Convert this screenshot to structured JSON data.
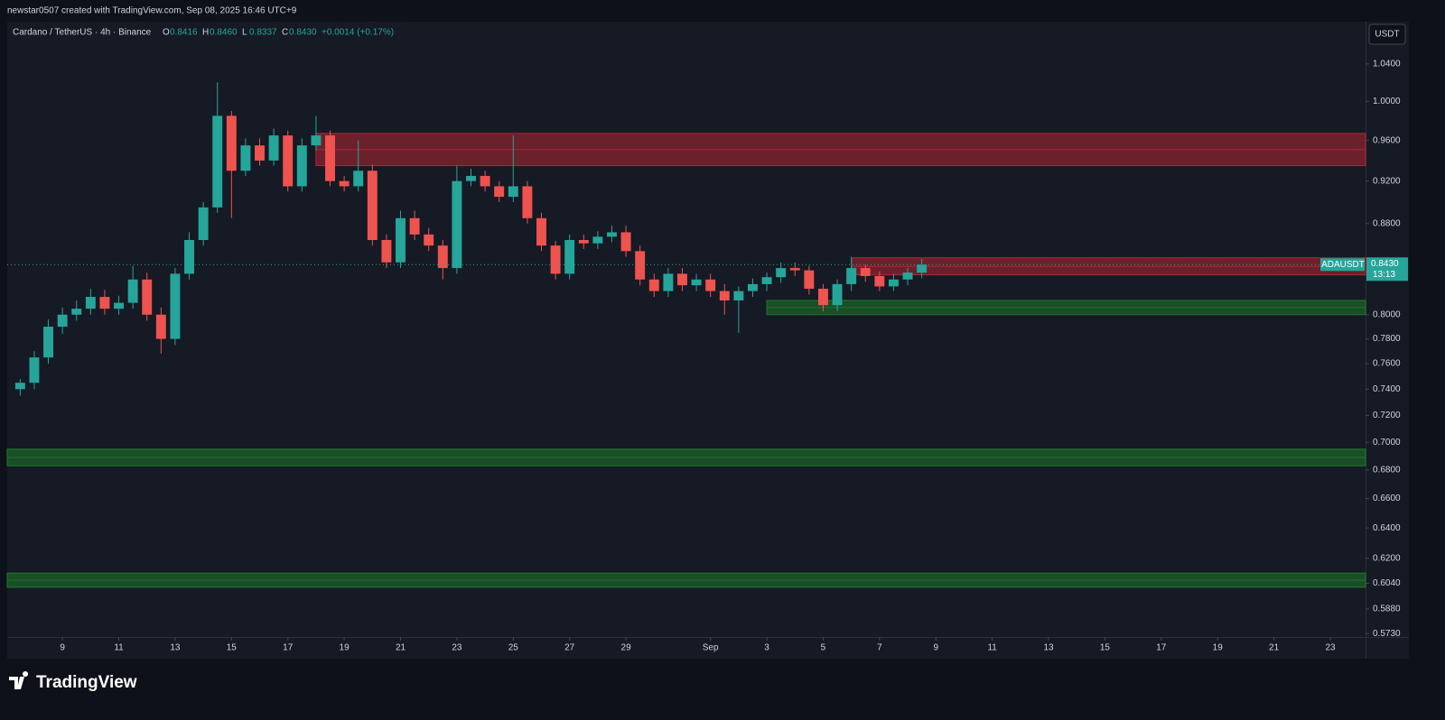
{
  "chart_data": {
    "type": "candlestick",
    "attribution": "newstar0507 created with TradingView.com, Sep 08, 2025 16:46 UTC+9",
    "symbol": "Cardano / TetherUS · 4h · Binance",
    "legend": [
      {
        "key": "O",
        "value": "0.8416"
      },
      {
        "key": "H",
        "value": "0.8460"
      },
      {
        "key": "L",
        "value": "0.8337"
      },
      {
        "key": "C",
        "value": "0.8430"
      }
    ],
    "change": "+0.0014 (+0.17%)",
    "currency": "USDT",
    "ticker": "ADAUSDT",
    "last_price": {
      "value": 0.843,
      "label": "0.8430"
    },
    "countdown": "13:13",
    "brand": "TradingView",
    "log_scale": true,
    "up_color": "#26a69a",
    "down_color": "#ef5350",
    "x": [
      7.5,
      8,
      8.5,
      9,
      9.5,
      10,
      10.5,
      11,
      11.5,
      12,
      12.5,
      13,
      13.5,
      14,
      14.5,
      15,
      15.5,
      16,
      16.5,
      17,
      17.5,
      18,
      18.5,
      19,
      19.5,
      20,
      20.5,
      21,
      21.5,
      22,
      22.5,
      23,
      23.5,
      24,
      24.5,
      25,
      25.5,
      26,
      26.5,
      27,
      27.5,
      28,
      28.5,
      29,
      29.5,
      30,
      30.5,
      31,
      31.5,
      32,
      32.5,
      33,
      33.5,
      34,
      34.5,
      35,
      35.5,
      36,
      36.5,
      37,
      37.5,
      38,
      38.5,
      39,
      39.5
    ],
    "open": [
      0.74,
      0.745,
      0.765,
      0.79,
      0.8,
      0.805,
      0.815,
      0.805,
      0.81,
      0.83,
      0.8,
      0.78,
      0.835,
      0.865,
      0.895,
      0.985,
      0.93,
      0.955,
      0.94,
      0.965,
      0.915,
      0.955,
      0.965,
      0.92,
      0.915,
      0.93,
      0.865,
      0.845,
      0.885,
      0.87,
      0.86,
      0.84,
      0.92,
      0.925,
      0.915,
      0.905,
      0.915,
      0.885,
      0.86,
      0.835,
      0.865,
      0.862,
      0.868,
      0.872,
      0.855,
      0.83,
      0.82,
      0.835,
      0.825,
      0.83,
      0.82,
      0.812,
      0.82,
      0.826,
      0.832,
      0.84,
      0.838,
      0.822,
      0.808,
      0.826,
      0.84,
      0.833,
      0.824,
      0.83,
      0.836
    ],
    "high": [
      0.748,
      0.77,
      0.796,
      0.806,
      0.812,
      0.822,
      0.821,
      0.816,
      0.842,
      0.836,
      0.806,
      0.84,
      0.872,
      0.9,
      1.02,
      0.99,
      0.962,
      0.962,
      0.972,
      0.97,
      0.962,
      0.985,
      0.97,
      0.925,
      0.96,
      0.936,
      0.87,
      0.892,
      0.892,
      0.876,
      0.865,
      0.935,
      0.932,
      0.93,
      0.92,
      0.965,
      0.92,
      0.89,
      0.864,
      0.87,
      0.87,
      0.873,
      0.878,
      0.878,
      0.86,
      0.835,
      0.84,
      0.84,
      0.835,
      0.835,
      0.826,
      0.824,
      0.831,
      0.836,
      0.845,
      0.845,
      0.842,
      0.826,
      0.83,
      0.85,
      0.843,
      0.837,
      0.835,
      0.84,
      0.848
    ],
    "low": [
      0.735,
      0.74,
      0.76,
      0.784,
      0.795,
      0.8,
      0.8,
      0.8,
      0.805,
      0.795,
      0.768,
      0.775,
      0.83,
      0.86,
      0.89,
      0.885,
      0.925,
      0.935,
      0.935,
      0.91,
      0.91,
      0.95,
      0.915,
      0.91,
      0.91,
      0.86,
      0.84,
      0.84,
      0.865,
      0.855,
      0.83,
      0.835,
      0.915,
      0.91,
      0.9,
      0.9,
      0.88,
      0.855,
      0.83,
      0.83,
      0.857,
      0.857,
      0.863,
      0.85,
      0.825,
      0.815,
      0.815,
      0.82,
      0.82,
      0.815,
      0.8,
      0.785,
      0.815,
      0.82,
      0.827,
      0.833,
      0.817,
      0.803,
      0.803,
      0.82,
      0.828,
      0.82,
      0.82,
      0.825,
      0.831
    ],
    "close": [
      0.745,
      0.765,
      0.79,
      0.8,
      0.805,
      0.815,
      0.805,
      0.81,
      0.83,
      0.8,
      0.78,
      0.835,
      0.865,
      0.895,
      0.985,
      0.93,
      0.955,
      0.94,
      0.965,
      0.915,
      0.955,
      0.965,
      0.92,
      0.915,
      0.93,
      0.865,
      0.845,
      0.885,
      0.87,
      0.86,
      0.84,
      0.92,
      0.925,
      0.915,
      0.905,
      0.915,
      0.885,
      0.86,
      0.835,
      0.865,
      0.862,
      0.868,
      0.872,
      0.855,
      0.83,
      0.82,
      0.835,
      0.825,
      0.83,
      0.82,
      0.812,
      0.82,
      0.826,
      0.832,
      0.84,
      0.838,
      0.822,
      0.808,
      0.826,
      0.84,
      0.833,
      0.824,
      0.83,
      0.836,
      0.843
    ],
    "zones": [
      {
        "low": 0.935,
        "high": 0.967,
        "from": 18.0,
        "color": "#b22833"
      },
      {
        "low": 0.834,
        "high": 0.849,
        "from": 37.0,
        "color": "#b22833"
      },
      {
        "low": 0.8,
        "high": 0.812,
        "from": 34.0,
        "color": "#1f7a2a"
      },
      {
        "low": 0.683,
        "high": 0.695,
        "from": 7.04,
        "color": "#1f7a2a"
      },
      {
        "low": 0.6015,
        "high": 0.6105,
        "from": 7.04,
        "color": "#1f7a2a"
      }
    ],
    "xlim": [
      7.04,
      55.25
    ],
    "xticks": [
      9,
      11,
      13,
      15,
      17,
      19,
      21,
      23,
      25,
      27,
      29,
      {
        "value": 32,
        "label": "Sep"
      },
      {
        "value": 34,
        "label": "3"
      },
      {
        "value": 36,
        "label": "5"
      },
      {
        "value": 38,
        "label": "7"
      },
      {
        "value": 40,
        "label": "9"
      },
      {
        "value": 42,
        "label": "11"
      },
      {
        "value": 44,
        "label": "13"
      },
      {
        "value": 46,
        "label": "15"
      },
      {
        "value": 48,
        "label": "17"
      },
      {
        "value": 50,
        "label": "19"
      },
      {
        "value": 52,
        "label": "21"
      },
      {
        "value": 54,
        "label": "23"
      }
    ],
    "ylim": [
      0.571,
      1.087
    ],
    "yticks": [
      {
        "value": 1.04,
        "label": "1.0400"
      },
      {
        "value": 1.0,
        "label": "1.0000"
      },
      {
        "value": 0.96,
        "label": "0.9600"
      },
      {
        "value": 0.92,
        "label": "0.9200"
      },
      {
        "value": 0.88,
        "label": "0.8800"
      },
      {
        "value": 0.8,
        "label": "0.8000"
      },
      {
        "value": 0.78,
        "label": "0.7800"
      },
      {
        "value": 0.76,
        "label": "0.7600"
      },
      {
        "value": 0.74,
        "label": "0.7400"
      },
      {
        "value": 0.72,
        "label": "0.7200"
      },
      {
        "value": 0.7,
        "label": "0.7000"
      },
      {
        "value": 0.68,
        "label": "0.6800"
      },
      {
        "value": 0.66,
        "label": "0.6600"
      },
      {
        "value": 0.64,
        "label": "0.6400"
      },
      {
        "value": 0.62,
        "label": "0.6200"
      },
      {
        "value": 0.604,
        "label": "0.6040"
      },
      {
        "value": 0.588,
        "label": "0.5880"
      },
      {
        "value": 0.573,
        "label": "0.5730"
      }
    ]
  }
}
